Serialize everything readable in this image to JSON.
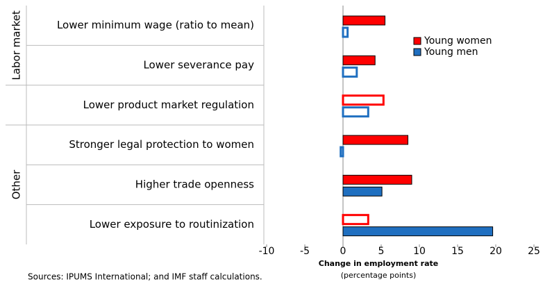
{
  "chart_data": {
    "type": "hbar",
    "categories": [
      "Lower minimum wage (ratio to mean)",
      "Lower severance pay",
      "Lower product market regulation",
      "Stronger legal protection to women",
      "Higher trade openness",
      "Lower exposure to routinization"
    ],
    "groups": [
      {
        "name": "Labor market",
        "size": 2
      },
      {
        "name": null,
        "size": 1
      },
      {
        "name": "Other",
        "size": 3
      }
    ],
    "series": [
      {
        "name": "Young women",
        "color": "#ff0000",
        "values": [
          5.5,
          4.2,
          5.3,
          8.5,
          9.0,
          3.3
        ],
        "filled": [
          true,
          true,
          false,
          true,
          true,
          false
        ]
      },
      {
        "name": "Young men",
        "color": "#1f6fc0",
        "values": [
          0.6,
          1.8,
          3.3,
          -0.3,
          5.1,
          19.6
        ],
        "filled": [
          false,
          false,
          false,
          false,
          true,
          true
        ]
      }
    ],
    "xlim": [
      -10,
      25
    ],
    "xticks": [
      -10,
      -5,
      0,
      5,
      10,
      15,
      20,
      25
    ],
    "xlabel": "Change in employment rate",
    "xlabel_sub": "(percentage points)",
    "source": "Sources: IPUMS International; and IMF staff calculations."
  }
}
